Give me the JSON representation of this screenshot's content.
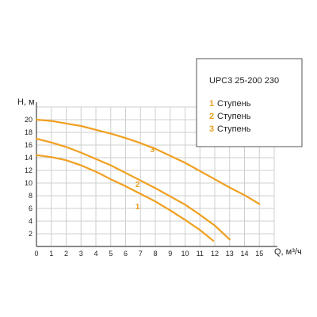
{
  "chart_data": {
    "type": "line",
    "xlabel": "Q, м³/ч",
    "ylabel": "H, м",
    "xlim": [
      0,
      16
    ],
    "ylim": [
      0,
      22
    ],
    "x_ticks": [
      0,
      1,
      2,
      3,
      4,
      5,
      6,
      7,
      8,
      9,
      10,
      11,
      12,
      13,
      14,
      15
    ],
    "y_ticks": [
      2,
      4,
      6,
      8,
      10,
      12,
      14,
      16,
      18,
      20
    ],
    "grid": true,
    "legend": {
      "title": "UPC3 25-200 230",
      "entries": [
        {
          "num": "1",
          "text": "Ступень"
        },
        {
          "num": "2",
          "text": "Ступень"
        },
        {
          "num": "3",
          "text": "Ступень"
        }
      ]
    },
    "colors": {
      "curve": "#f0a020",
      "grid": "#cfcfcf",
      "axis": "#444444",
      "number": "#e8a020"
    },
    "series": [
      {
        "name": "1",
        "x": [
          0,
          1,
          2,
          3,
          4,
          5,
          6,
          7,
          8,
          9,
          10,
          11,
          11.9
        ],
        "y": [
          14.4,
          14.1,
          13.6,
          12.8,
          11.8,
          10.6,
          9.5,
          8.3,
          7.1,
          5.7,
          4.2,
          2.6,
          0.9
        ]
      },
      {
        "name": "2",
        "x": [
          0,
          1,
          2,
          3,
          4,
          5,
          6,
          7,
          8,
          9,
          10,
          11,
          12,
          13
        ],
        "y": [
          17.0,
          16.4,
          15.7,
          14.8,
          13.8,
          12.8,
          11.6,
          10.4,
          9.2,
          7.9,
          6.6,
          5.0,
          3.3,
          1.1
        ]
      },
      {
        "name": "3",
        "x": [
          0,
          1,
          2,
          3,
          4,
          5,
          6,
          7,
          8,
          9,
          10,
          11,
          12,
          13,
          14,
          15
        ],
        "y": [
          20.0,
          19.8,
          19.4,
          19.0,
          18.4,
          17.8,
          17.1,
          16.3,
          15.4,
          14.3,
          13.2,
          11.9,
          10.6,
          9.3,
          8.1,
          6.7
        ]
      }
    ],
    "curve_labels": [
      {
        "text": "1",
        "x": 6.8,
        "y": 5.9
      },
      {
        "text": "2",
        "x": 6.8,
        "y": 9.4
      },
      {
        "text": "3",
        "x": 7.8,
        "y": 14.9
      }
    ]
  }
}
